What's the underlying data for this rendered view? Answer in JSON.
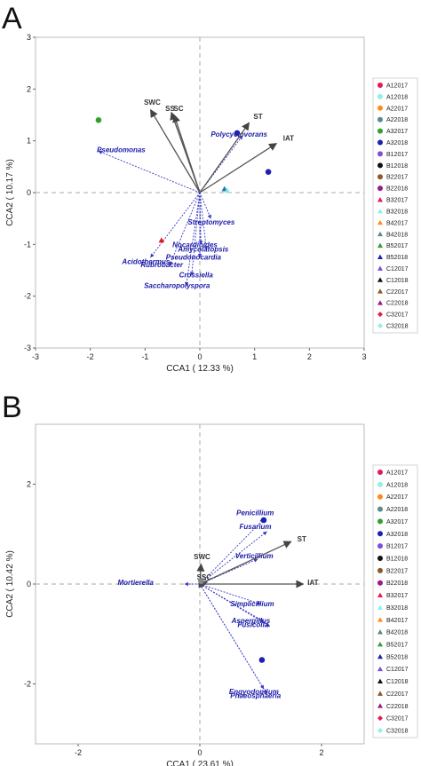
{
  "chart_data": [
    {
      "panel": "A",
      "type": "scatter",
      "xlabel": "CCA1 ( 12.33 %)",
      "ylabel": "CCA2 ( 10.17 %)",
      "xlim": [
        -3,
        3
      ],
      "ylim": [
        -3,
        3
      ],
      "xticks": [
        -3,
        -2,
        -1,
        0,
        1,
        2,
        3
      ],
      "yticks": [
        -3,
        -2,
        -1,
        0,
        1,
        2,
        3
      ],
      "env_vectors": [
        {
          "label": "SWC",
          "x": -0.9,
          "y": 1.6,
          "lx": -1.02,
          "ly": 1.7
        },
        {
          "label": "SS",
          "x": -0.52,
          "y": 1.55,
          "lx": -0.63,
          "ly": 1.58
        },
        {
          "label": "SC",
          "x": -0.47,
          "y": 1.5,
          "lx": -0.48,
          "ly": 1.58
        },
        {
          "label": "ST",
          "x": 0.9,
          "y": 1.35,
          "lx": 0.98,
          "ly": 1.42
        },
        {
          "label": "IAT",
          "x": 1.4,
          "y": 0.95,
          "lx": 1.52,
          "ly": 1.0
        }
      ],
      "taxa": [
        {
          "label": "Pseudomonas",
          "x": -1.85,
          "y": 0.8,
          "lx": -1.88,
          "ly": 0.78
        },
        {
          "label": "Polycyclovorans",
          "x": 0.78,
          "y": 1.1,
          "lx": 0.2,
          "ly": 1.08
        },
        {
          "label": "Streptomyces",
          "x": 0.2,
          "y": -0.5,
          "lx": -0.22,
          "ly": -0.62
        },
        {
          "label": "Nocardioides",
          "x": 0.02,
          "y": -1.0,
          "lx": -0.5,
          "ly": -1.05
        },
        {
          "label": "Amycolatopsis",
          "x": 0.12,
          "y": -1.1,
          "lx": -0.4,
          "ly": -1.14
        },
        {
          "label": "Pseudonocardia",
          "x": 0.0,
          "y": -1.25,
          "lx": -0.62,
          "ly": -1.29
        },
        {
          "label": "Acidothermus",
          "x": -0.9,
          "y": -1.25,
          "lx": -1.42,
          "ly": -1.38
        },
        {
          "label": "Rubrobacter",
          "x": -0.55,
          "y": -1.4,
          "lx": -1.08,
          "ly": -1.44
        },
        {
          "label": "Crossiella",
          "x": -0.15,
          "y": -1.6,
          "lx": -0.38,
          "ly": -1.64
        },
        {
          "label": "Saccharopolyspora",
          "x": -0.25,
          "y": -1.8,
          "lx": -1.02,
          "ly": -1.84
        }
      ],
      "points": [
        {
          "x": -1.85,
          "y": 1.4,
          "color": "#33a02c",
          "shape": "circle"
        },
        {
          "x": 0.68,
          "y": 1.15,
          "color": "#2020b0",
          "shape": "circle"
        },
        {
          "x": 1.25,
          "y": 0.4,
          "color": "#2020b0",
          "shape": "circle"
        },
        {
          "x": -0.7,
          "y": -0.92,
          "color": "#e31a1c",
          "shape": "triangle"
        },
        {
          "x": 0.45,
          "y": 0.07,
          "color": "#1f78b4",
          "shape": "triangle"
        },
        {
          "x": 0.5,
          "y": 0.04,
          "color": "#8ee8e0",
          "shape": "triangle"
        }
      ]
    },
    {
      "panel": "B",
      "type": "scatter",
      "xlabel": "CCA1 ( 23.61 %)",
      "ylabel": "CCA2 ( 10.42 %)",
      "xlim": [
        -2.7,
        2.7
      ],
      "ylim": [
        -3.2,
        3.2
      ],
      "xticks": [
        -2,
        0,
        2
      ],
      "yticks": [
        -2,
        0,
        2
      ],
      "env_vectors": [
        {
          "label": "SWC",
          "x": 0.02,
          "y": 0.4,
          "lx": -0.1,
          "ly": 0.5
        },
        {
          "label": "SS",
          "x": 0.1,
          "y": 0.0,
          "lx": -0.05,
          "ly": 0.09
        },
        {
          "label": "SC",
          "x": 0.12,
          "y": 0.04,
          "lx": 0.03,
          "ly": 0.09
        },
        {
          "label": "ST",
          "x": 1.5,
          "y": 0.85,
          "lx": 1.6,
          "ly": 0.85
        },
        {
          "label": "IAT",
          "x": 1.7,
          "y": 0.0,
          "lx": 1.77,
          "ly": -0.02
        }
      ],
      "taxa": [
        {
          "label": "Penicillium",
          "x": 1.05,
          "y": 1.3,
          "lx": 0.6,
          "ly": 1.38
        },
        {
          "label": "Fusarium",
          "x": 1.1,
          "y": 1.05,
          "lx": 0.65,
          "ly": 1.1
        },
        {
          "label": "Verticillium",
          "x": 0.95,
          "y": 0.5,
          "lx": 0.58,
          "ly": 0.52
        },
        {
          "label": "Mortierella",
          "x": -0.25,
          "y": 0.0,
          "lx": -1.35,
          "ly": -0.02
        },
        {
          "label": "Simplicillium",
          "x": 1.0,
          "y": -0.4,
          "lx": 0.5,
          "ly": -0.44
        },
        {
          "label": "Aspergillus",
          "x": 1.05,
          "y": -0.75,
          "lx": 0.52,
          "ly": -0.78
        },
        {
          "label": "Fusicolla",
          "x": 1.15,
          "y": -0.85,
          "lx": 0.62,
          "ly": -0.86
        },
        {
          "label": "Engyodontium",
          "x": 1.05,
          "y": -2.1,
          "lx": 0.48,
          "ly": -2.2
        },
        {
          "label": "Phaeosphaeria",
          "x": 1.1,
          "y": -2.2,
          "lx": 0.5,
          "ly": -2.28
        }
      ],
      "points": [
        {
          "x": 1.05,
          "y": 1.28,
          "color": "#2020b0",
          "shape": "circle"
        },
        {
          "x": 1.02,
          "y": -1.52,
          "color": "#2020b0",
          "shape": "circle"
        },
        {
          "x": 0.02,
          "y": 0.06,
          "color": "#888888",
          "shape": "circle"
        }
      ]
    }
  ],
  "panel_letters": {
    "a": "A",
    "b": "B"
  },
  "legend": [
    {
      "label": "A12017",
      "color": "#e31a56",
      "shape": "circle"
    },
    {
      "label": "A12018",
      "color": "#8ef0e8",
      "shape": "circle"
    },
    {
      "label": "A22017",
      "color": "#ff8c1a",
      "shape": "circle"
    },
    {
      "label": "A22018",
      "color": "#5a8a8a",
      "shape": "circle"
    },
    {
      "label": "A32017",
      "color": "#33a02c",
      "shape": "circle"
    },
    {
      "label": "A32018",
      "color": "#2020b0",
      "shape": "circle"
    },
    {
      "label": "B12017",
      "color": "#7b4fd6",
      "shape": "circle"
    },
    {
      "label": "B12018",
      "color": "#111111",
      "shape": "circle"
    },
    {
      "label": "B22017",
      "color": "#8a5a2a",
      "shape": "circle"
    },
    {
      "label": "B22018",
      "color": "#9a1a8a",
      "shape": "circle"
    },
    {
      "label": "B32017",
      "color": "#e31a56",
      "shape": "triangle"
    },
    {
      "label": "B32018",
      "color": "#8ef0e8",
      "shape": "triangle"
    },
    {
      "label": "B42017",
      "color": "#ff8c1a",
      "shape": "triangle"
    },
    {
      "label": "B42018",
      "color": "#5a8a8a",
      "shape": "triangle"
    },
    {
      "label": "B52017",
      "color": "#33a02c",
      "shape": "triangle"
    },
    {
      "label": "B52018",
      "color": "#2020b0",
      "shape": "triangle"
    },
    {
      "label": "C12017",
      "color": "#7b4fd6",
      "shape": "triangle"
    },
    {
      "label": "C12018",
      "color": "#111111",
      "shape": "triangle"
    },
    {
      "label": "C22017",
      "color": "#8a5a2a",
      "shape": "triangle"
    },
    {
      "label": "C22018",
      "color": "#9a1a8a",
      "shape": "triangle"
    },
    {
      "label": "C32017",
      "color": "#e31a56",
      "shape": "diamond"
    },
    {
      "label": "C32018",
      "color": "#8ef0e8",
      "shape": "diamond"
    }
  ]
}
